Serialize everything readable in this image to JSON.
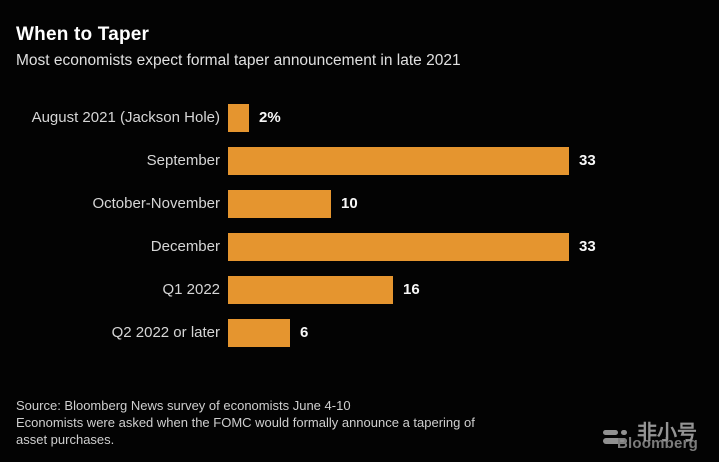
{
  "chart_data": {
    "type": "bar",
    "orientation": "horizontal",
    "title": "When to Taper",
    "subtitle": "Most economists expect formal taper announcement in late 2021",
    "categories": [
      "August 2021 (Jackson Hole)",
      "September",
      "October-November",
      "December",
      "Q1 2022",
      "Q2 2022 or later"
    ],
    "values": [
      2,
      33,
      10,
      33,
      16,
      6
    ],
    "value_labels": [
      "2%",
      "33",
      "10",
      "33",
      "16",
      "6"
    ],
    "bar_color": "#E5952F",
    "legend": "none",
    "grid": "off"
  },
  "footer": {
    "lines": [
      "Source: Bloomberg News survey of economists June 4-10",
      "Economists were asked when the FOMC would formally announce a tapering of",
      "asset purchases."
    ]
  },
  "watermark": {
    "bloomberg_text": "Bloomberg",
    "chinese_text": "非小号"
  },
  "colors": {
    "background": "#030303",
    "bar": "#E5952F",
    "title": "#ffffff",
    "text": "#d6d6d6"
  }
}
